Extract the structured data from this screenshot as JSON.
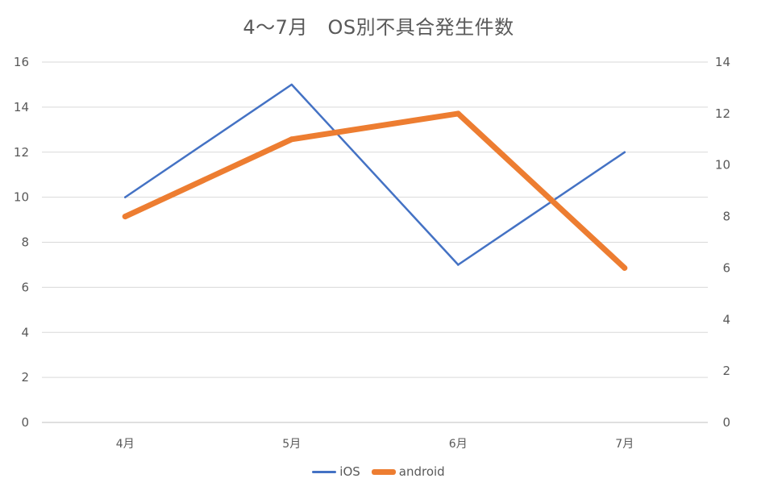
{
  "chart_data": {
    "type": "line",
    "title": "4〜7月　OS別不具合発生件数",
    "categories": [
      "4月",
      "5月",
      "6月",
      "7月"
    ],
    "xlabel": "",
    "ylabel": "",
    "ylim": [
      0,
      16
    ],
    "y_ticks": [
      "0",
      "2",
      "4",
      "6",
      "8",
      "10",
      "12",
      "14",
      "16"
    ],
    "y2lim": [
      0,
      14
    ],
    "y2_ticks": [
      "0",
      "2",
      "4",
      "6",
      "8",
      "10",
      "12",
      "14"
    ],
    "grid": true,
    "legend_position": "bottom",
    "series": [
      {
        "name": "iOS",
        "axis": "left",
        "color": "#4472C4",
        "values": [
          10,
          15,
          7,
          12
        ]
      },
      {
        "name": "android",
        "axis": "right",
        "color": "#ED7D31",
        "values": [
          8,
          11,
          12,
          6
        ]
      }
    ]
  }
}
